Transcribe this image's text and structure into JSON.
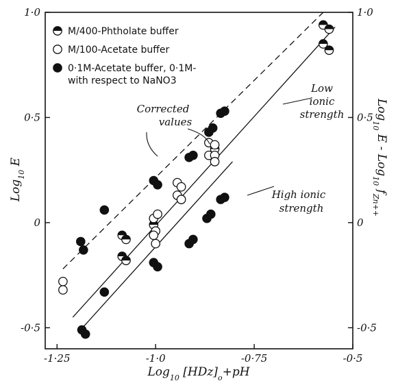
{
  "chart_data": {
    "type": "scatter",
    "xlabel": "Log10 [HDz]0 + pH",
    "xlabel_parts": {
      "pre": "Log",
      "sub": "10",
      "post": " [HDz]",
      "sub2": "o",
      "post2": "+pH"
    },
    "ylabel_left": "Log10 E",
    "ylabel_left_parts": {
      "pre": "Log",
      "sub": "10",
      "post": " E"
    },
    "ylabel_right": "Log10 E - Log10 fZn++",
    "ylabel_right_parts": {
      "pre": "Log",
      "sub": "10",
      "mid": " E - Log",
      "sub2": "10",
      "post": " f",
      "sub3": "Zn++"
    },
    "xlim": [
      -1.28,
      -0.5
    ],
    "ylim": [
      -0.6,
      1.0
    ],
    "x_ticks": [
      {
        "value": -1.25,
        "label": "-1·25"
      },
      {
        "value": -1.0,
        "label": "-1·0"
      },
      {
        "value": -0.75,
        "label": "-0·75"
      },
      {
        "value": -0.5,
        "label": "-0·5"
      }
    ],
    "y_ticks_left": [
      {
        "value": 1.0,
        "label": "1·0"
      },
      {
        "value": 0.5,
        "label": "0·5"
      },
      {
        "value": 0.0,
        "label": "0"
      },
      {
        "value": -0.5,
        "label": "-0·5"
      }
    ],
    "y_ticks_right": [
      {
        "value": 1.0,
        "label": "1·0"
      },
      {
        "value": 0.5,
        "label": "0·5"
      },
      {
        "value": 0.0,
        "label": "0"
      },
      {
        "value": -0.5,
        "label": "-0·5"
      }
    ],
    "grid": false,
    "legend": {
      "position": "top-left",
      "entries": [
        {
          "marker": "half",
          "text": "M/400-Phtholate buffer"
        },
        {
          "marker": "open",
          "text": "M/100-Acetate buffer"
        },
        {
          "marker": "filled",
          "text": "0·1M-Acetate buffer, 0·1M-"
        },
        {
          "marker": "none",
          "text": "with respect to NaNO3"
        }
      ]
    },
    "series": [
      {
        "name": "M/400-Phtholate buffer",
        "marker": "half",
        "points": [
          [
            -1.085,
            -0.06
          ],
          [
            -1.075,
            -0.08
          ],
          [
            -1.085,
            -0.16
          ],
          [
            -1.075,
            -0.18
          ],
          [
            -1.005,
            -0.01
          ],
          [
            -0.85,
            0.35
          ],
          [
            -0.575,
            0.94
          ],
          [
            -0.56,
            0.92
          ],
          [
            -0.575,
            0.85
          ],
          [
            -0.56,
            0.82
          ]
        ]
      },
      {
        "name": "M/100-Acetate buffer",
        "marker": "open",
        "points": [
          [
            -1.235,
            -0.28
          ],
          [
            -1.235,
            -0.32
          ],
          [
            -1.005,
            0.02
          ],
          [
            -0.995,
            0.04
          ],
          [
            -1.0,
            -0.04
          ],
          [
            -1.005,
            -0.06
          ],
          [
            -1.0,
            -0.1
          ],
          [
            -0.945,
            0.19
          ],
          [
            -0.935,
            0.17
          ],
          [
            -0.945,
            0.13
          ],
          [
            -0.935,
            0.11
          ],
          [
            -0.865,
            0.38
          ],
          [
            -0.85,
            0.37
          ],
          [
            -0.865,
            0.32
          ],
          [
            -0.85,
            0.32
          ],
          [
            -0.85,
            0.29
          ]
        ]
      },
      {
        "name": "0·1M-Acetate buffer, 0·1M-with respect to NaNO3",
        "marker": "filled",
        "points": [
          [
            -1.19,
            -0.09
          ],
          [
            -1.183,
            -0.13
          ],
          [
            -1.13,
            0.06
          ],
          [
            -1.005,
            0.2
          ],
          [
            -0.995,
            0.18
          ],
          [
            -0.915,
            0.31
          ],
          [
            -0.905,
            0.32
          ],
          [
            -0.865,
            0.43
          ],
          [
            -0.855,
            0.45
          ],
          [
            -0.835,
            0.52
          ],
          [
            -0.825,
            0.53
          ],
          [
            -1.187,
            -0.51
          ],
          [
            -1.178,
            -0.53
          ],
          [
            -1.13,
            -0.33
          ],
          [
            -1.005,
            -0.19
          ],
          [
            -0.995,
            -0.21
          ],
          [
            -0.915,
            -0.1
          ],
          [
            -0.905,
            -0.08
          ],
          [
            -0.87,
            0.02
          ],
          [
            -0.86,
            0.04
          ],
          [
            -0.835,
            0.11
          ],
          [
            -0.825,
            0.12
          ]
        ]
      }
    ],
    "lines": [
      {
        "style": "dashed",
        "from": [
          -1.235,
          -0.22
        ],
        "to": [
          -0.575,
          1.0
        ]
      },
      {
        "style": "solid",
        "from": [
          -1.21,
          -0.45
        ],
        "to": [
          -0.545,
          0.93
        ]
      },
      {
        "style": "solid",
        "from": [
          -1.195,
          -0.52
        ],
        "to": [
          -0.805,
          0.29
        ]
      }
    ],
    "annotations": [
      {
        "lines": [
          "Corrected",
          "values"
        ],
        "anchor": [
          -1.05,
          0.55
        ]
      },
      {
        "lines": [
          "Low",
          "ionic",
          "strength"
        ],
        "anchor": [
          -0.72,
          0.57
        ]
      },
      {
        "lines": [
          "High ionic",
          "strength"
        ],
        "anchor": [
          -0.75,
          0.2
        ]
      }
    ]
  }
}
